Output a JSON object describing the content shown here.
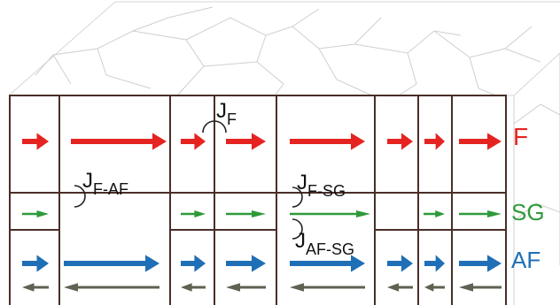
{
  "colors": {
    "ferro": "#e52421",
    "spin_glass": "#2e9a3a",
    "antiferro": "#1f6fb6",
    "antiferro_reverse": "#5f6152",
    "grid": "#4a2e28",
    "grain_lines": "#cfcfcf"
  },
  "layer_labels": {
    "ferro": "F",
    "spin_glass": "SG",
    "antiferro": "AF"
  },
  "couplings": {
    "ferro": {
      "main": "J",
      "sub": "F"
    },
    "ferro_antiferro": {
      "main": "J",
      "sub": "F-AF"
    },
    "ferro_spinglass": {
      "main": "J",
      "sub": "F-SG"
    },
    "antiferro_spinglass": {
      "main": "J",
      "sub": "AF-SG"
    }
  },
  "icons": {
    "coupling_mark": "arc-bracket",
    "moment": "arrow-right",
    "moment_reverse": "arrow-left"
  }
}
